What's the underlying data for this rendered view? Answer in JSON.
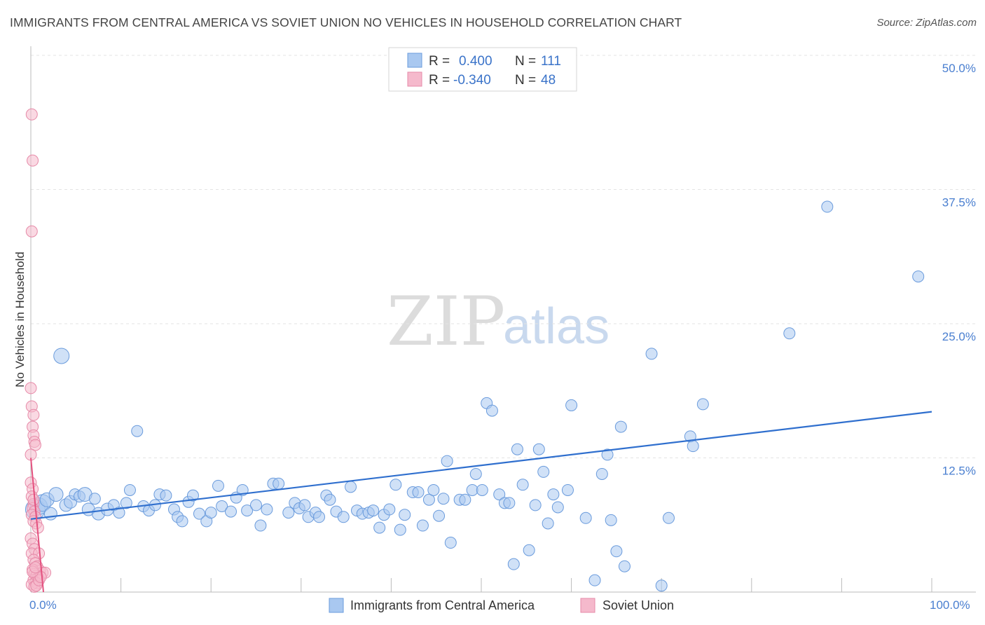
{
  "header": {
    "title": "IMMIGRANTS FROM CENTRAL AMERICA VS SOVIET UNION NO VEHICLES IN HOUSEHOLD CORRELATION CHART",
    "source": "Source: ZipAtlas.com"
  },
  "watermark": {
    "zip": "ZIP",
    "atlas": "atlas"
  },
  "legend": {
    "rows": [
      {
        "r_label": "R =",
        "r_value": "0.400",
        "n_label": "N =",
        "n_value": "111",
        "color": "#a9c8f0"
      },
      {
        "r_label": "R =",
        "r_value": "-0.340",
        "n_label": "N =",
        "n_value": "48",
        "color": "#f5b9cc"
      }
    ]
  },
  "chart_data": {
    "type": "scatter",
    "ylabel": "No Vehicles in Household",
    "xlim": [
      0,
      100
    ],
    "ylim": [
      0,
      50
    ],
    "x_tick_labels": [
      "0.0%",
      "100.0%"
    ],
    "y_ticks": [
      12.5,
      25.0,
      37.5,
      50.0
    ],
    "y_tick_labels": [
      "12.5%",
      "25.0%",
      "37.5%",
      "50.0%"
    ],
    "grid": true,
    "colors": {
      "blue_fill": "#a9c8f0",
      "blue_stroke": "#6a9bdc",
      "blue_line": "#2f6fce",
      "pink_fill": "#f5b9cc",
      "pink_stroke": "#e68aa8",
      "pink_line": "#e4517f"
    },
    "series": [
      {
        "name": "Immigrants from Central America",
        "trend": {
          "x": [
            0,
            100
          ],
          "y": [
            6.8,
            16.8
          ]
        },
        "points": [
          [
            0.5,
            7.7,
            14
          ],
          [
            0.9,
            8.0,
            12
          ],
          [
            1.3,
            8.3,
            12
          ],
          [
            1.8,
            8.6,
            10
          ],
          [
            2.2,
            7.3,
            9
          ],
          [
            2.8,
            9.1,
            10
          ],
          [
            3.4,
            22.0,
            11
          ],
          [
            3.9,
            8.1,
            9
          ],
          [
            4.4,
            8.4,
            9
          ],
          [
            4.9,
            9.1,
            8
          ],
          [
            5.4,
            8.9,
            8
          ],
          [
            6.0,
            9.1,
            10
          ],
          [
            6.4,
            7.7,
            9
          ],
          [
            7.1,
            8.7,
            8
          ],
          [
            7.5,
            7.3,
            9
          ],
          [
            8.5,
            7.7,
            9
          ],
          [
            9.2,
            8.1,
            8
          ],
          [
            9.8,
            7.4,
            8
          ],
          [
            10.6,
            8.3,
            8
          ],
          [
            11.0,
            9.5,
            8
          ],
          [
            11.8,
            15.0,
            8
          ],
          [
            12.5,
            8.0,
            8
          ],
          [
            13.1,
            7.6,
            8
          ],
          [
            13.8,
            8.1,
            8
          ],
          [
            14.3,
            9.1,
            8
          ],
          [
            15.0,
            9.0,
            8
          ],
          [
            15.9,
            7.7,
            8
          ],
          [
            16.3,
            7.0,
            8
          ],
          [
            16.8,
            6.6,
            8
          ],
          [
            17.5,
            8.4,
            8
          ],
          [
            18.0,
            9.0,
            8
          ],
          [
            18.7,
            7.3,
            8
          ],
          [
            19.5,
            6.6,
            8
          ],
          [
            20.0,
            7.4,
            8
          ],
          [
            20.8,
            9.9,
            8
          ],
          [
            21.2,
            8.0,
            8
          ],
          [
            22.2,
            7.5,
            8
          ],
          [
            22.8,
            8.8,
            8
          ],
          [
            23.5,
            9.5,
            8
          ],
          [
            24.0,
            7.6,
            8
          ],
          [
            25.0,
            8.1,
            8
          ],
          [
            25.5,
            6.2,
            8
          ],
          [
            26.2,
            7.7,
            8
          ],
          [
            26.9,
            10.1,
            8
          ],
          [
            27.5,
            10.1,
            8
          ],
          [
            28.6,
            7.4,
            8
          ],
          [
            29.3,
            8.3,
            8
          ],
          [
            29.8,
            7.8,
            8
          ],
          [
            30.4,
            8.1,
            8
          ],
          [
            30.8,
            7.0,
            8
          ],
          [
            31.6,
            7.4,
            8
          ],
          [
            32.0,
            7.0,
            8
          ],
          [
            32.8,
            9.0,
            8
          ],
          [
            33.2,
            8.6,
            8
          ],
          [
            33.9,
            7.5,
            8
          ],
          [
            34.7,
            7.0,
            8
          ],
          [
            35.5,
            9.8,
            8
          ],
          [
            36.2,
            7.6,
            8
          ],
          [
            36.8,
            7.3,
            8
          ],
          [
            37.5,
            7.4,
            8
          ],
          [
            38.0,
            7.6,
            8
          ],
          [
            38.7,
            6.0,
            8
          ],
          [
            39.2,
            7.2,
            8
          ],
          [
            39.8,
            7.7,
            8
          ],
          [
            40.5,
            10.0,
            8
          ],
          [
            41.0,
            5.8,
            8
          ],
          [
            41.5,
            7.2,
            8
          ],
          [
            42.4,
            9.3,
            8
          ],
          [
            43.0,
            9.3,
            8
          ],
          [
            43.5,
            6.2,
            8
          ],
          [
            44.2,
            8.6,
            8
          ],
          [
            44.7,
            9.5,
            8
          ],
          [
            45.3,
            7.1,
            8
          ],
          [
            45.8,
            8.7,
            8
          ],
          [
            46.2,
            12.2,
            8
          ],
          [
            46.6,
            4.6,
            8
          ],
          [
            47.6,
            8.6,
            8
          ],
          [
            48.2,
            8.6,
            8
          ],
          [
            49.0,
            9.5,
            8
          ],
          [
            49.4,
            11.0,
            8
          ],
          [
            50.1,
            9.5,
            8
          ],
          [
            50.6,
            17.6,
            8
          ],
          [
            51.2,
            16.9,
            8
          ],
          [
            52.0,
            9.1,
            8
          ],
          [
            52.6,
            8.3,
            8
          ],
          [
            53.1,
            8.3,
            8
          ],
          [
            53.6,
            2.6,
            8
          ],
          [
            54.0,
            13.3,
            8
          ],
          [
            54.6,
            10.0,
            8
          ],
          [
            55.3,
            3.9,
            8
          ],
          [
            56.0,
            8.1,
            8
          ],
          [
            56.4,
            13.3,
            8
          ],
          [
            56.9,
            11.2,
            8
          ],
          [
            57.4,
            6.4,
            8
          ],
          [
            58.0,
            9.1,
            8
          ],
          [
            58.5,
            7.9,
            8
          ],
          [
            59.6,
            9.5,
            8
          ],
          [
            60.0,
            17.4,
            8
          ],
          [
            61.6,
            6.9,
            8
          ],
          [
            62.6,
            1.1,
            8
          ],
          [
            63.4,
            11.0,
            8
          ],
          [
            64.0,
            12.8,
            8
          ],
          [
            64.4,
            6.7,
            8
          ],
          [
            65.0,
            3.8,
            8
          ],
          [
            65.5,
            15.4,
            8
          ],
          [
            65.9,
            2.4,
            8
          ],
          [
            68.9,
            22.2,
            8
          ],
          [
            70.0,
            0.6,
            8
          ],
          [
            70.8,
            6.9,
            8
          ],
          [
            73.2,
            14.5,
            8
          ],
          [
            73.5,
            13.6,
            8
          ],
          [
            74.6,
            17.5,
            8
          ],
          [
            88.4,
            35.9,
            8
          ],
          [
            84.2,
            24.1,
            8
          ],
          [
            98.5,
            29.4,
            8
          ]
        ]
      },
      {
        "name": "Soviet Union",
        "trend": {
          "x": [
            0,
            1.4
          ],
          "y": [
            12.5,
            0
          ]
        },
        "points": [
          [
            0.1,
            44.5,
            8
          ],
          [
            0.2,
            40.2,
            8
          ],
          [
            0.1,
            33.6,
            8
          ],
          [
            0.0,
            19.0,
            8
          ],
          [
            0.1,
            17.3,
            8
          ],
          [
            0.3,
            16.5,
            8
          ],
          [
            0.2,
            15.4,
            8
          ],
          [
            0.3,
            14.6,
            8
          ],
          [
            0.4,
            14.0,
            8
          ],
          [
            0.5,
            13.7,
            8
          ],
          [
            0.0,
            10.2,
            8
          ],
          [
            0.2,
            9.6,
            8
          ],
          [
            0.1,
            8.9,
            8
          ],
          [
            0.3,
            8.2,
            8
          ],
          [
            0.2,
            7.8,
            8
          ],
          [
            0.4,
            7.5,
            8
          ],
          [
            0.1,
            7.2,
            8
          ],
          [
            0.5,
            7.0,
            8
          ],
          [
            0.3,
            6.6,
            8
          ],
          [
            0.6,
            6.4,
            8
          ],
          [
            0.0,
            5.0,
            8
          ],
          [
            0.2,
            4.5,
            8
          ],
          [
            0.4,
            4.0,
            8
          ],
          [
            0.1,
            3.6,
            8
          ],
          [
            0.9,
            3.6,
            8
          ],
          [
            0.3,
            3.0,
            8
          ],
          [
            0.5,
            2.7,
            8
          ],
          [
            0.7,
            2.4,
            8
          ],
          [
            1.0,
            2.0,
            8
          ],
          [
            1.3,
            1.8,
            8
          ],
          [
            1.6,
            1.8,
            8
          ],
          [
            0.2,
            2.1,
            8
          ],
          [
            0.4,
            1.7,
            8
          ],
          [
            0.6,
            1.5,
            8
          ],
          [
            0.8,
            1.3,
            8
          ],
          [
            0.3,
            1.1,
            8
          ],
          [
            0.5,
            0.9,
            8
          ],
          [
            0.7,
            0.8,
            8
          ],
          [
            0.1,
            0.7,
            8
          ],
          [
            0.4,
            0.5,
            8
          ],
          [
            0.6,
            0.6,
            8
          ],
          [
            0.9,
            1.1,
            8
          ],
          [
            1.1,
            1.4,
            8
          ],
          [
            0.2,
            1.9,
            8
          ],
          [
            0.5,
            2.3,
            8
          ],
          [
            0.8,
            6.0,
            8
          ],
          [
            0.0,
            12.8,
            8
          ],
          [
            0.3,
            8.6,
            8
          ]
        ]
      }
    ]
  },
  "bottom_legend": {
    "items": [
      {
        "label": "Immigrants from Central America",
        "color": "#a9c8f0"
      },
      {
        "label": "Soviet Union",
        "color": "#f5b9cc"
      }
    ]
  }
}
